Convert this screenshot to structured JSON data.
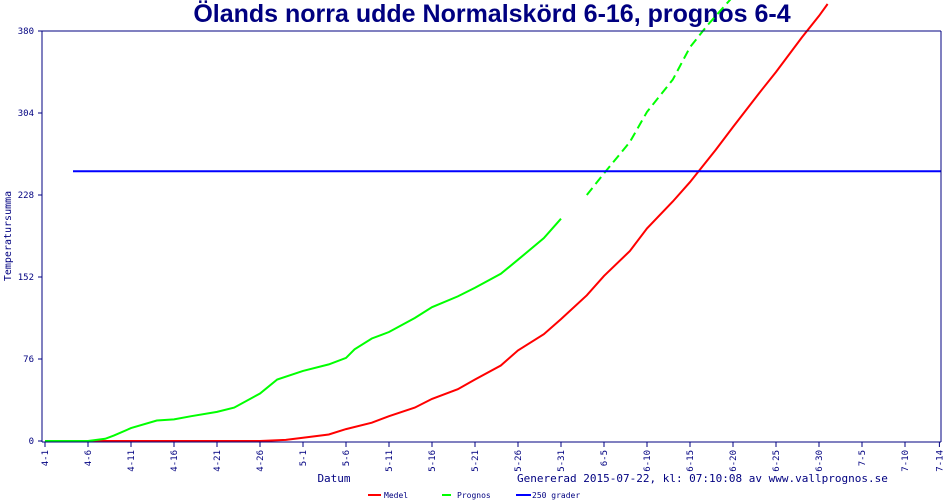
{
  "chart_data": {
    "type": "line",
    "title": "Ölands norra udde Normalskörd 6-16, prognos 6-4",
    "xlabel": "Datum",
    "ylabel": "Temperatursumma",
    "footer": "Genererad 2015-07-22, kl: 07:10:08 av www.vallprognos.se",
    "x_ticks": [
      "4-1",
      "4-6",
      "4-11",
      "4-16",
      "4-21",
      "4-26",
      "5-1",
      "5-6",
      "5-11",
      "5-16",
      "5-21",
      "5-26",
      "5-31",
      "6-5",
      "6-10",
      "6-15",
      "6-20",
      "6-25",
      "6-30",
      "7-5",
      "7-10",
      "7-14"
    ],
    "x_tick_days": [
      0,
      5,
      10,
      15,
      20,
      25,
      30,
      35,
      40,
      45,
      50,
      55,
      60,
      65,
      70,
      75,
      80,
      85,
      90,
      95,
      100,
      104
    ],
    "x_unit": "days since 4-1",
    "xlim": [
      0,
      104
    ],
    "y_ticks": [
      0,
      76,
      152,
      228,
      304,
      380
    ],
    "ylim": [
      0,
      380
    ],
    "grid": false,
    "legend_position": "bottom",
    "series": [
      {
        "name": "Medel",
        "color": "#ff0000",
        "points": [
          [
            0,
            0
          ],
          [
            25,
            0
          ],
          [
            28,
            1
          ],
          [
            30,
            3
          ],
          [
            33,
            6
          ],
          [
            35,
            11
          ],
          [
            38,
            17
          ],
          [
            40,
            23
          ],
          [
            43,
            31
          ],
          [
            45,
            39
          ],
          [
            48,
            48
          ],
          [
            50,
            57
          ],
          [
            53,
            70
          ],
          [
            55,
            84
          ],
          [
            58,
            99
          ],
          [
            60,
            113
          ],
          [
            63,
            135
          ],
          [
            65,
            153
          ],
          [
            68,
            176
          ],
          [
            70,
            197
          ],
          [
            73,
            222
          ],
          [
            75,
            240
          ],
          [
            78,
            270
          ],
          [
            80,
            291
          ],
          [
            83,
            322
          ],
          [
            85,
            342
          ],
          [
            88,
            374
          ],
          [
            90,
            394
          ],
          [
            91,
            405
          ]
        ]
      },
      {
        "name": "Prognos",
        "color": "#00ff00",
        "dashed_from_day": 61,
        "points": [
          [
            0,
            0
          ],
          [
            5,
            0
          ],
          [
            7,
            2
          ],
          [
            8,
            5
          ],
          [
            10,
            12
          ],
          [
            13,
            19
          ],
          [
            15,
            20
          ],
          [
            17,
            23
          ],
          [
            20,
            27
          ],
          [
            22,
            31
          ],
          [
            25,
            44
          ],
          [
            27,
            57
          ],
          [
            30,
            65
          ],
          [
            33,
            71
          ],
          [
            35,
            77
          ],
          [
            36,
            85
          ],
          [
            38,
            95
          ],
          [
            40,
            101
          ],
          [
            43,
            114
          ],
          [
            45,
            124
          ],
          [
            48,
            134
          ],
          [
            50,
            142
          ],
          [
            53,
            155
          ],
          [
            55,
            168
          ],
          [
            58,
            188
          ],
          [
            60,
            206
          ],
          [
            63,
            228
          ],
          [
            65,
            248
          ],
          [
            68,
            277
          ],
          [
            70,
            305
          ],
          [
            73,
            335
          ],
          [
            75,
            365
          ],
          [
            77,
            385
          ],
          [
            80,
            412
          ]
        ]
      },
      {
        "name": "250 grader",
        "color": "#0000ff",
        "constant": 250
      }
    ]
  }
}
